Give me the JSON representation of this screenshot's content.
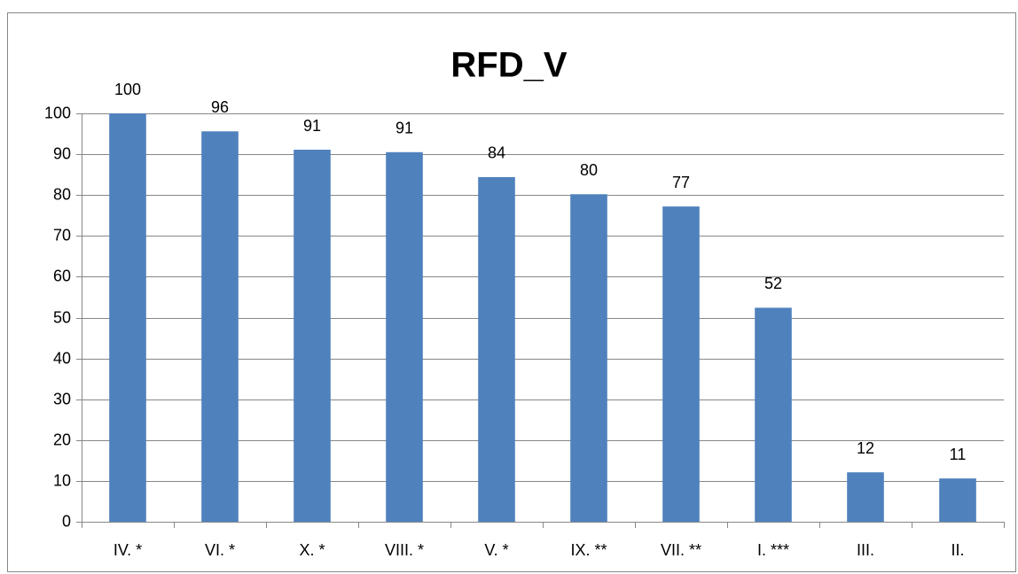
{
  "chart_data": {
    "type": "bar",
    "title": "RFD_V",
    "categories": [
      "IV. *",
      "VI. *",
      "X. *",
      "VIII. *",
      "V. *",
      "IX. **",
      "VII. **",
      "I. ***",
      "III.",
      "II."
    ],
    "values": [
      100,
      95.6,
      91.1,
      90.5,
      84.4,
      80.2,
      77.2,
      52.4,
      12.1,
      10.6
    ],
    "value_labels": [
      "100",
      "96",
      "91",
      "91",
      "84",
      "80",
      "77",
      "52",
      "12",
      "11"
    ],
    "color": "#4f81bd",
    "ylim": [
      0,
      100
    ],
    "yticks": [
      0,
      10,
      20,
      30,
      40,
      50,
      60,
      70,
      80,
      90,
      100
    ],
    "grid": true
  }
}
